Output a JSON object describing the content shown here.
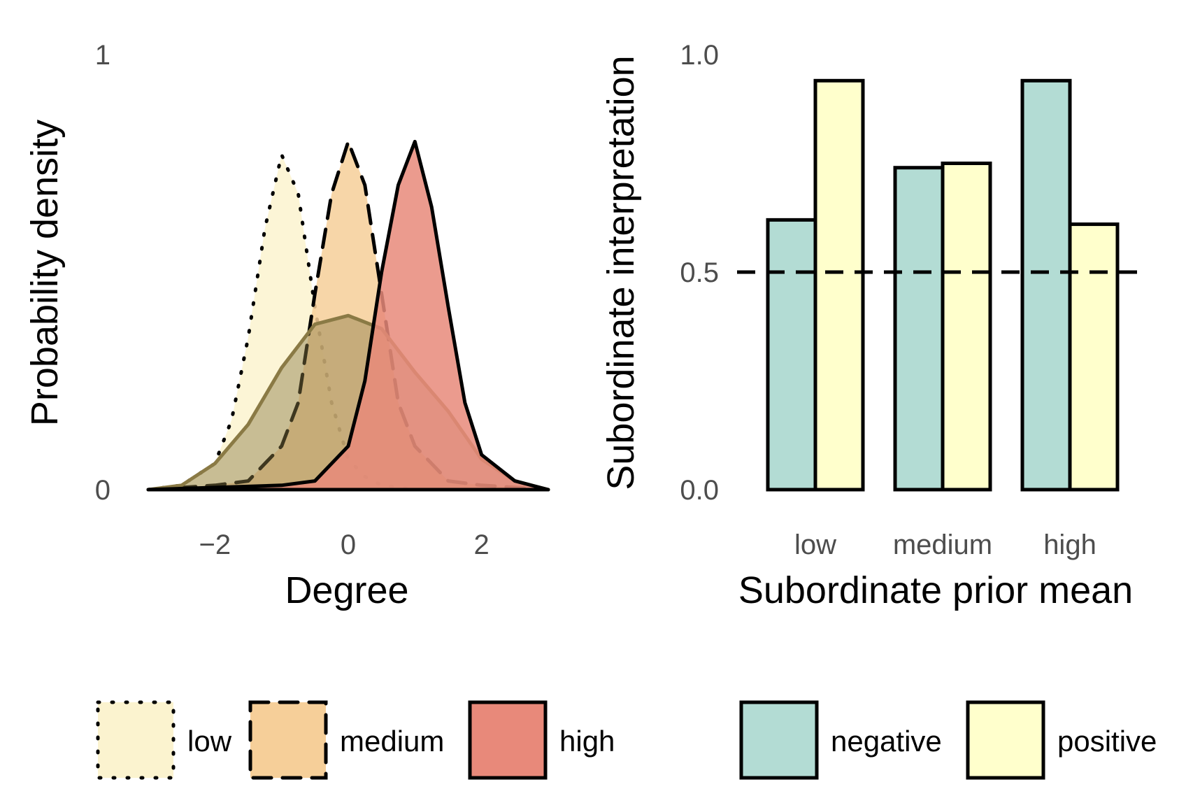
{
  "chart_data": [
    {
      "type": "area",
      "xlabel": "Degree",
      "ylabel": "Probability density",
      "xlim": [
        -3,
        3
      ],
      "ylim": [
        0,
        1
      ],
      "x_ticks": [
        "−2",
        "0",
        "2"
      ],
      "x_tick_values": [
        -2,
        0,
        2
      ],
      "y_ticks": [
        "0",
        "1"
      ],
      "y_tick_values": [
        0,
        1
      ],
      "grid": false,
      "legend_position": "bottom",
      "series": [
        {
          "name": "low",
          "linetype": "dotted",
          "color": "#fbf3cf",
          "x": [
            -3,
            -2.5,
            -2,
            -1.75,
            -1.5,
            -1.25,
            -1,
            -0.75,
            -0.5,
            -0.25,
            0,
            0.25,
            0.5,
            1,
            2,
            3
          ],
          "y": [
            0,
            0.01,
            0.06,
            0.16,
            0.35,
            0.6,
            0.77,
            0.68,
            0.42,
            0.2,
            0.07,
            0.03,
            0.01,
            0,
            0,
            0
          ]
        },
        {
          "name": "medium",
          "linetype": "dashed",
          "color": "#f6cf99",
          "x": [
            -3,
            -2,
            -1.5,
            -1,
            -0.75,
            -0.5,
            -0.25,
            0,
            0.25,
            0.5,
            0.75,
            1,
            1.5,
            2,
            3
          ],
          "y": [
            0,
            0.01,
            0.02,
            0.1,
            0.2,
            0.45,
            0.68,
            0.8,
            0.7,
            0.45,
            0.2,
            0.1,
            0.02,
            0.01,
            0
          ]
        },
        {
          "name": "high",
          "linetype": "solid",
          "color": "#e8897a",
          "x": [
            -3,
            -1,
            -0.5,
            0,
            0.25,
            0.5,
            0.75,
            1,
            1.25,
            1.5,
            1.75,
            2,
            2.5,
            3
          ],
          "y": [
            0,
            0.01,
            0.02,
            0.1,
            0.25,
            0.5,
            0.7,
            0.8,
            0.65,
            0.42,
            0.2,
            0.08,
            0.02,
            0
          ]
        },
        {
          "name": "",
          "linetype": "solid",
          "color": "#8a7a45",
          "x": [
            -3,
            -2.5,
            -2,
            -1.5,
            -1,
            -0.5,
            0,
            0.5,
            1,
            1.5,
            2,
            2.5,
            3
          ],
          "y": [
            0,
            0.01,
            0.06,
            0.15,
            0.28,
            0.38,
            0.4,
            0.37,
            0.27,
            0.18,
            0.07,
            0.02,
            0
          ]
        }
      ]
    },
    {
      "type": "bar",
      "title": "",
      "xlabel": "Subordinate prior mean",
      "ylabel": "Subordinate interpretation",
      "categories": [
        "low",
        "medium",
        "high"
      ],
      "ylim": [
        0,
        1
      ],
      "y_ticks": [
        "0.0",
        "0.5",
        "1.0"
      ],
      "y_tick_values": [
        0,
        0.5,
        1
      ],
      "reference_line": 0.5,
      "grid": false,
      "legend_position": "bottom",
      "series": [
        {
          "name": "negative",
          "color": "#b3dcd4",
          "values": [
            0.62,
            0.74,
            0.94
          ]
        },
        {
          "name": "positive",
          "color": "#ffffcc",
          "values": [
            0.94,
            0.75,
            0.61
          ]
        }
      ]
    }
  ],
  "legends": {
    "density": [
      {
        "label": "low",
        "color": "#fbf3cf",
        "linetype": "dotted"
      },
      {
        "label": "medium",
        "color": "#f6cf99",
        "linetype": "dashed"
      },
      {
        "label": "high",
        "color": "#e8897a",
        "linetype": "solid"
      }
    ],
    "bars": [
      {
        "label": "negative",
        "color": "#b3dcd4"
      },
      {
        "label": "positive",
        "color": "#ffffcc"
      }
    ]
  }
}
